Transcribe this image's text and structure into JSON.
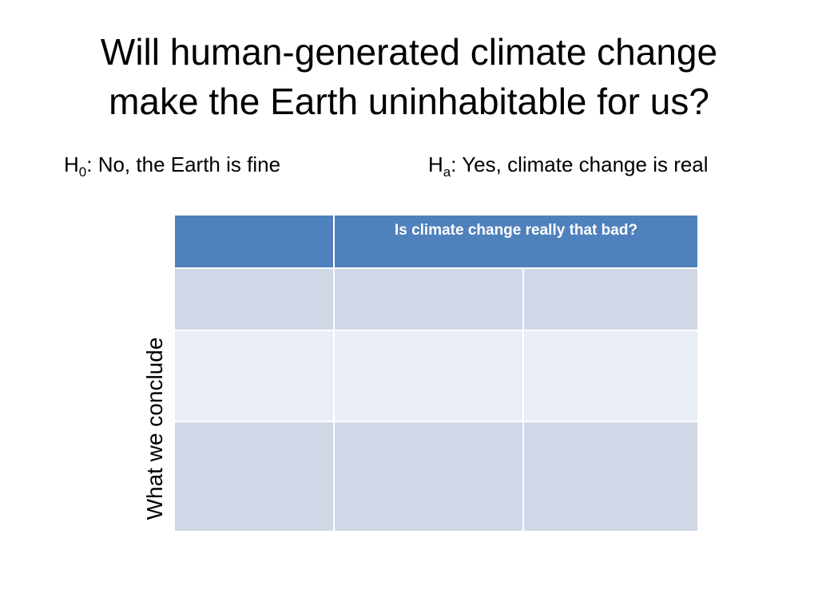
{
  "slide": {
    "title_line1": "Will human-generated climate change",
    "title_line2": "make the Earth uninhabitable for us?",
    "null_hypothesis": {
      "symbol": "H",
      "subscript": "0",
      "text": ": No, the Earth is fine"
    },
    "alt_hypothesis": {
      "symbol": "H",
      "subscript": "a",
      "text": ": Yes, climate change is real"
    }
  },
  "table": {
    "column_header": "Is climate change really that bad?",
    "row_axis_label": "What we conclude",
    "rows": [
      [
        "",
        "",
        ""
      ],
      [
        "",
        "",
        ""
      ],
      [
        "",
        "",
        ""
      ]
    ],
    "colors": {
      "header": "#4f81bd",
      "band_dark": "#d0d8e8",
      "band_light": "#e9edf4"
    }
  }
}
